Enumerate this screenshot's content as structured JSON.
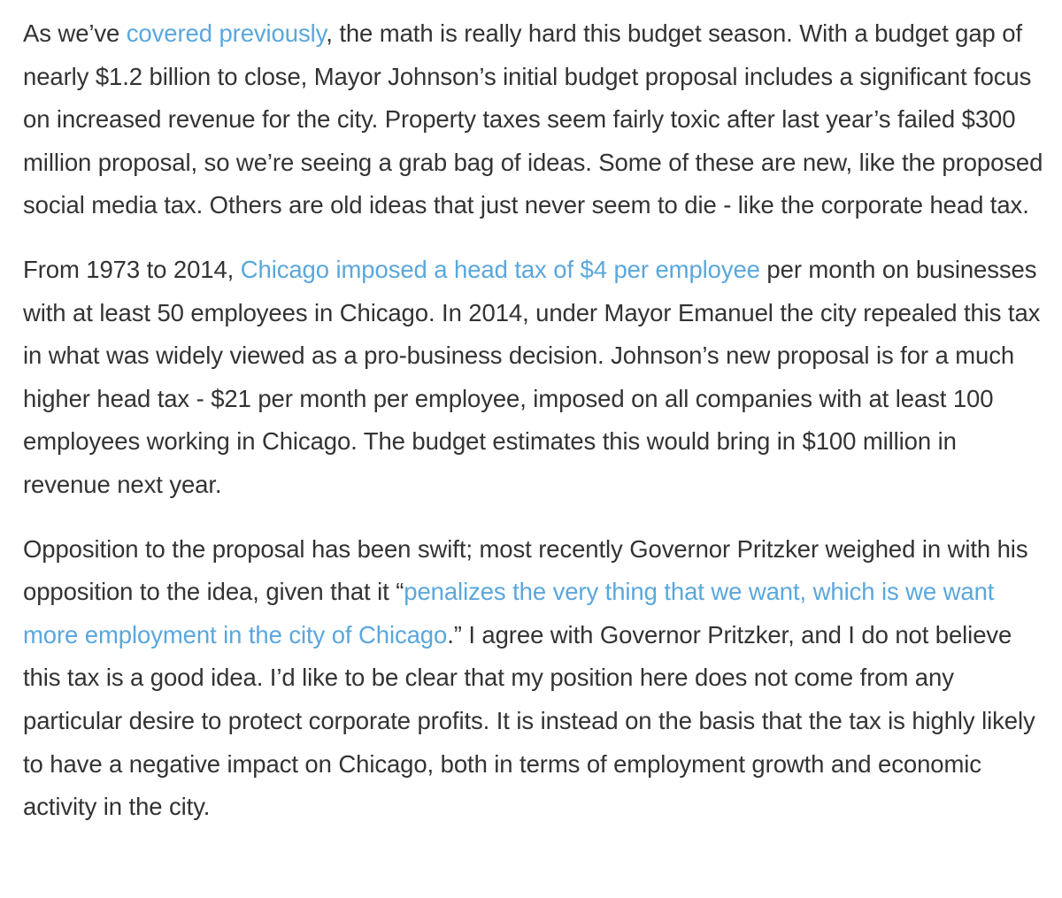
{
  "article": {
    "paragraphs": [
      {
        "segments": [
          {
            "text": "As we’ve ",
            "link": false
          },
          {
            "text": "covered previously",
            "link": true
          },
          {
            "text": ", the math is really hard this budget season. With a budget gap of nearly $1.2 billion to close, Mayor Johnson’s initial budget proposal includes a significant focus on increased revenue for the city. Property taxes seem fairly toxic after last year’s failed $300 million proposal, so we’re seeing a grab bag of ideas. Some of these are new, like the proposed social media tax. Others are old ideas that just never seem to die - like the corporate head tax.",
            "link": false
          }
        ]
      },
      {
        "segments": [
          {
            "text": "From 1973 to 2014, ",
            "link": false
          },
          {
            "text": "Chicago imposed a head tax of $4 per employee",
            "link": true
          },
          {
            "text": " per month on businesses with at least 50 employees in Chicago. In 2014, under Mayor Emanuel the city repealed this tax in what was widely viewed as a pro-business decision. Johnson’s new proposal is for a much higher head tax - $21 per month per employee, imposed on all companies with at least 100 employees working in Chicago. The budget estimates this would bring in $100 million in revenue next year.",
            "link": false
          }
        ]
      },
      {
        "segments": [
          {
            "text": "Opposition to the proposal has been swift; most recently Governor Pritzker weighed in with his opposition to the idea, given that it “",
            "link": false
          },
          {
            "text": "penalizes the very thing that we want, which is we want more employment in the city of Chicago",
            "link": true
          },
          {
            "text": ".” I agree with Governor Pritzker, and I do not believe this tax is a good idea. I’d like to be clear that my position here does not come from any particular desire to protect corporate profits. It is instead on the basis that the tax is highly likely to have a negative impact on Chicago, both in terms of employment growth and economic activity in the city.",
            "link": false
          }
        ]
      }
    ]
  },
  "colors": {
    "text": "#333333",
    "link": "#5aa7dc",
    "background": "#ffffff"
  }
}
